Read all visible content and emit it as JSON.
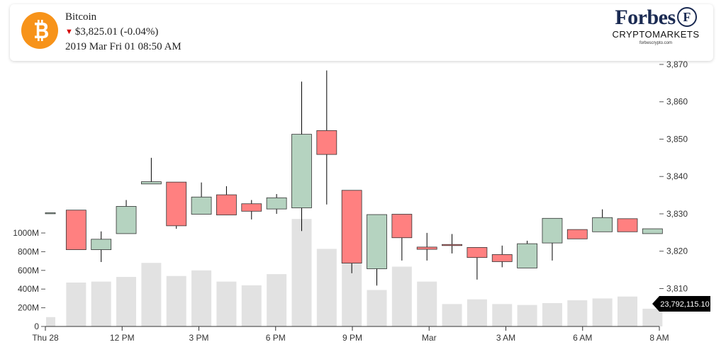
{
  "header": {
    "asset_name": "Bitcoin",
    "price_change": "$3,825.01 (-0.04%)",
    "timestamp": "2019 Mar Fri 01 08:50 AM",
    "down_arrow": "▼",
    "coin_icon": "bitcoin-icon",
    "coin_color": "#f7931a"
  },
  "brand": {
    "top": "Forbes",
    "emblem": "F",
    "sub": "CRYPTOMARKETS",
    "url": "forbescrypto.com"
  },
  "chart_data": {
    "type": "candlestick",
    "x_ticks": [
      "Thu 28",
      "12 PM",
      "3 PM",
      "6 PM",
      "9 PM",
      "Mar",
      "3 AM",
      "6 AM",
      "8 AM"
    ],
    "price_ticks": [
      "3,870",
      "3,860",
      "3,850",
      "3,840",
      "3,830",
      "3,820",
      "3,810"
    ],
    "price_ylim": [
      3808,
      3870
    ],
    "volume_ticks": [
      "0",
      "200M",
      "400M",
      "600M",
      "800M",
      "1000M"
    ],
    "volume_ylim": [
      0,
      1000
    ],
    "last_volume_label": "23,792,115.10",
    "colors": {
      "up": "#b5d3c0",
      "down": "#ff8080",
      "volume": "#e2e2e2"
    },
    "candles": [
      {
        "open": 3830.3,
        "close": 3830.3,
        "high": 3830.3,
        "low": 3830.3,
        "volume": 100
      },
      {
        "open": 3831.0,
        "close": 3820.4,
        "high": 3831.0,
        "low": 3820.4,
        "volume": 470
      },
      {
        "open": 3820.4,
        "close": 3823.2,
        "high": 3825.3,
        "low": 3817.1,
        "volume": 480
      },
      {
        "open": 3824.7,
        "close": 3832.0,
        "high": 3833.7,
        "low": 3824.7,
        "volume": 530
      },
      {
        "open": 3838.0,
        "close": 3838.6,
        "high": 3845.0,
        "low": 3838.0,
        "volume": 680
      },
      {
        "open": 3838.5,
        "close": 3826.8,
        "high": 3838.5,
        "low": 3826.0,
        "volume": 540
      },
      {
        "open": 3829.9,
        "close": 3834.5,
        "high": 3838.4,
        "low": 3829.9,
        "volume": 600
      },
      {
        "open": 3835.1,
        "close": 3829.7,
        "high": 3837.4,
        "low": 3829.7,
        "volume": 480
      },
      {
        "open": 3832.7,
        "close": 3830.7,
        "high": 3833.7,
        "low": 3828.5,
        "volume": 440
      },
      {
        "open": 3831.3,
        "close": 3834.3,
        "high": 3835.3,
        "low": 3830.0,
        "volume": 560
      },
      {
        "open": 3831.6,
        "close": 3851.3,
        "high": 3865.4,
        "low": 3825.4,
        "volume": 1150
      },
      {
        "open": 3852.3,
        "close": 3845.9,
        "high": 3868.4,
        "low": 3832.5,
        "volume": 830
      },
      {
        "open": 3836.3,
        "close": 3816.8,
        "high": 3836.3,
        "low": 3814.1,
        "volume": 1120
      },
      {
        "open": 3815.3,
        "close": 3829.8,
        "high": 3829.8,
        "low": 3810.8,
        "volume": 390
      },
      {
        "open": 3829.9,
        "close": 3823.6,
        "high": 3829.9,
        "low": 3817.5,
        "volume": 640
      },
      {
        "open": 3821.1,
        "close": 3820.5,
        "high": 3824.9,
        "low": 3817.5,
        "volume": 480
      },
      {
        "open": 3821.8,
        "close": 3821.5,
        "high": 3824.6,
        "low": 3819.4,
        "volume": 240
      },
      {
        "open": 3821.0,
        "close": 3818.3,
        "high": 3821.0,
        "low": 3812.4,
        "volume": 290
      },
      {
        "open": 3819.1,
        "close": 3817.2,
        "high": 3821.5,
        "low": 3815.7,
        "volume": 240
      },
      {
        "open": 3815.5,
        "close": 3822.0,
        "high": 3822.8,
        "low": 3815.5,
        "volume": 230
      },
      {
        "open": 3822.2,
        "close": 3828.8,
        "high": 3828.8,
        "low": 3817.5,
        "volume": 250
      },
      {
        "open": 3825.8,
        "close": 3823.3,
        "high": 3825.8,
        "low": 3823.3,
        "volume": 280
      },
      {
        "open": 3825.2,
        "close": 3829.0,
        "high": 3831.2,
        "low": 3825.2,
        "volume": 300
      },
      {
        "open": 3828.7,
        "close": 3825.2,
        "high": 3828.7,
        "low": 3825.2,
        "volume": 320
      },
      {
        "open": 3824.7,
        "close": 3826.0,
        "high": 3826.0,
        "low": 3824.7,
        "volume": 190
      }
    ]
  }
}
